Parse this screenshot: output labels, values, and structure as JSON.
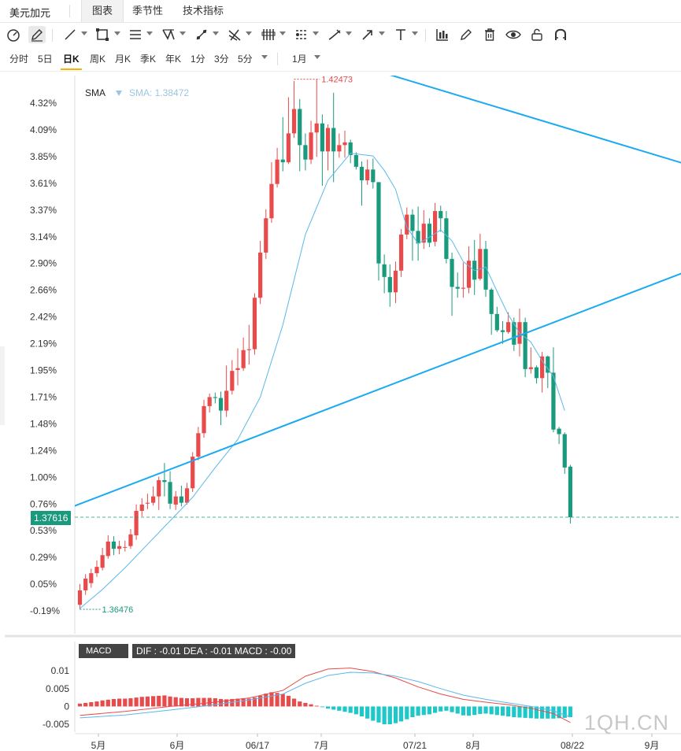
{
  "header": {
    "app_title": "美元加元",
    "tabs": [
      {
        "label": "图表",
        "active": true
      },
      {
        "label": "季节性",
        "active": false
      },
      {
        "label": "技术指标",
        "active": false
      }
    ]
  },
  "toolbar": {
    "icons": [
      "gauge-icon",
      "pen-icon",
      "line-icon",
      "rectangle-icon",
      "parallel-lines-icon",
      "pattern-icon",
      "line-segment-icon",
      "cross-lines-icon",
      "candle-bars-icon",
      "fib-levels-icon",
      "brush-icon",
      "arrow-icon",
      "text-icon",
      "indicator-chart-icon",
      "edit-pencil-icon",
      "trash-icon",
      "eye-icon",
      "lock-icon",
      "magnet-icon"
    ]
  },
  "periods": [
    "分时",
    "5日",
    "日K",
    "周K",
    "月K",
    "季K",
    "年K",
    "1分",
    "3分",
    "5分"
  ],
  "active_period": "日K",
  "range_select": "1月",
  "colors": {
    "up": "#e84b4b",
    "down": "#1a9a7c",
    "sma": "#5bb8ea",
    "trendline": "#1aaaf0",
    "dif": "#e84b4b",
    "dea": "#5bb8ea",
    "macd_pos": "#e84b4b",
    "macd_neg": "#1ec8c8"
  },
  "main_chart": {
    "indicator_label": "SMA",
    "indicator_value": "SMA: 1.38472",
    "high_label": "1.42473",
    "low_label": "1.36476",
    "current_price_label": "1.37616",
    "watermark": "1QH.CN"
  },
  "macd": {
    "label": "MACD",
    "info": "DIF : -0.01   DEA : -0.01   MACD : -0.00"
  },
  "chart_data": {
    "type": "candlestick",
    "y_axis_ticks": [
      "4.32%",
      "4.09%",
      "3.85%",
      "3.61%",
      "3.37%",
      "3.14%",
      "2.90%",
      "2.66%",
      "2.42%",
      "2.19%",
      "1.95%",
      "1.71%",
      "1.48%",
      "1.24%",
      "1.00%",
      "0.76%",
      "0.53%",
      "0.29%",
      "0.05%",
      "-0.19%"
    ],
    "ylim": [
      1.3633,
      1.4251
    ],
    "x_axis_ticks": [
      "5月",
      "6月",
      "06/17",
      "7月",
      "07/21",
      "8月",
      "08/22",
      "9月"
    ],
    "candles": [
      [
        1.3665,
        1.3681,
        1.366,
        1.3688
      ],
      [
        1.3681,
        1.3694,
        1.3676,
        1.3699
      ],
      [
        1.3689,
        1.37,
        1.3684,
        1.3705
      ],
      [
        1.37,
        1.3707,
        1.3696,
        1.3714
      ],
      [
        1.3706,
        1.372,
        1.3703,
        1.3728
      ],
      [
        1.3719,
        1.3735,
        1.3716,
        1.3742
      ],
      [
        1.3735,
        1.3727,
        1.372,
        1.3741
      ],
      [
        1.3727,
        1.373,
        1.3721,
        1.3736
      ],
      [
        1.3729,
        1.3729,
        1.3724,
        1.3736
      ],
      [
        1.373,
        1.3743,
        1.3727,
        1.3749
      ],
      [
        1.3742,
        1.3769,
        1.3737,
        1.3776
      ],
      [
        1.3769,
        1.3776,
        1.3763,
        1.3783
      ],
      [
        1.3777,
        1.3778,
        1.3771,
        1.3788
      ],
      [
        1.3778,
        1.3785,
        1.3775,
        1.3796
      ],
      [
        1.3785,
        1.3803,
        1.377,
        1.3807
      ],
      [
        1.3803,
        1.3801,
        1.3785,
        1.3822
      ],
      [
        1.3801,
        1.3777,
        1.3771,
        1.3813
      ],
      [
        1.3776,
        1.3785,
        1.377,
        1.3791
      ],
      [
        1.3785,
        1.3778,
        1.3774,
        1.3797
      ],
      [
        1.3778,
        1.3794,
        1.3776,
        1.38
      ],
      [
        1.3794,
        1.3829,
        1.379,
        1.3834
      ],
      [
        1.3829,
        1.3855,
        1.3825,
        1.3862
      ],
      [
        1.3855,
        1.3885,
        1.385,
        1.3892
      ],
      [
        1.3885,
        1.3895,
        1.3878,
        1.3899
      ],
      [
        1.3895,
        1.3894,
        1.3888,
        1.39
      ],
      [
        1.3894,
        1.388,
        1.3864,
        1.3901
      ],
      [
        1.388,
        1.3902,
        1.3873,
        1.393
      ],
      [
        1.3902,
        1.3924,
        1.3898,
        1.3936
      ],
      [
        1.3925,
        1.3927,
        1.3908,
        1.3949
      ],
      [
        1.3927,
        1.3947,
        1.3924,
        1.3961
      ],
      [
        1.3947,
        1.3948,
        1.3931,
        1.3975
      ],
      [
        1.3948,
        1.4005,
        1.3942,
        1.401
      ],
      [
        1.4005,
        1.4055,
        1.3998,
        1.4068
      ],
      [
        1.4055,
        1.4093,
        1.4048,
        1.4103
      ],
      [
        1.4093,
        1.4131,
        1.4088,
        1.4155
      ],
      [
        1.4131,
        1.4158,
        1.4127,
        1.4171
      ],
      [
        1.4158,
        1.4155,
        1.4145,
        1.4205
      ],
      [
        1.4155,
        1.4187,
        1.4153,
        1.4227
      ],
      [
        1.4187,
        1.4214,
        1.4182,
        1.4245
      ],
      [
        1.4214,
        1.4174,
        1.4145,
        1.4225
      ],
      [
        1.4174,
        1.4158,
        1.4146,
        1.4187
      ],
      [
        1.4158,
        1.4188,
        1.4153,
        1.4201
      ],
      [
        1.4188,
        1.4198,
        1.4161,
        1.4247
      ],
      [
        1.4198,
        1.4167,
        1.4129,
        1.4208
      ],
      [
        1.4167,
        1.4193,
        1.4146,
        1.4197
      ],
      [
        1.4193,
        1.4167,
        1.4133,
        1.4232
      ],
      [
        1.4167,
        1.4174,
        1.416,
        1.4187
      ],
      [
        1.4174,
        1.4177,
        1.416,
        1.419
      ],
      [
        1.4177,
        1.4163,
        1.4154,
        1.418
      ],
      [
        1.4163,
        1.415,
        1.4147,
        1.4166
      ],
      [
        1.415,
        1.4135,
        1.4107,
        1.4156
      ],
      [
        1.4135,
        1.4147,
        1.413,
        1.4158
      ],
      [
        1.4147,
        1.4133,
        1.4126,
        1.4159
      ],
      [
        1.4133,
        1.4043,
        1.4024,
        1.4133
      ],
      [
        1.4042,
        1.4028,
        1.401,
        1.4053
      ],
      [
        1.4028,
        1.4011,
        1.3995,
        1.4042
      ],
      [
        1.4011,
        1.4035,
        1.3999,
        1.4045
      ],
      [
        1.4035,
        1.4075,
        1.4028,
        1.4081
      ],
      [
        1.4075,
        1.4097,
        1.407,
        1.4105
      ],
      [
        1.4097,
        1.4079,
        1.4046,
        1.4103
      ],
      [
        1.4079,
        1.4065,
        1.4046,
        1.4106
      ],
      [
        1.4066,
        1.4087,
        1.4059,
        1.4102
      ],
      [
        1.4087,
        1.4066,
        1.4061,
        1.4093
      ],
      [
        1.4067,
        1.4101,
        1.4062,
        1.411
      ],
      [
        1.4101,
        1.4093,
        1.4078,
        1.4107
      ],
      [
        1.4093,
        1.4048,
        1.4043,
        1.4101
      ],
      [
        1.4048,
        1.4017,
        1.3985,
        1.4055
      ],
      [
        1.4017,
        1.4015,
        1.4005,
        1.4033
      ],
      [
        1.4015,
        1.4016,
        1.4005,
        1.4044
      ],
      [
        1.4016,
        1.4046,
        1.401,
        1.4062
      ],
      [
        1.4046,
        1.4025,
        1.4008,
        1.4069
      ],
      [
        1.4026,
        1.4059,
        1.4024,
        1.4076
      ],
      [
        1.4059,
        1.4014,
        1.4006,
        1.4068
      ],
      [
        1.4014,
        1.3987,
        1.3964,
        1.4016
      ],
      [
        1.3987,
        1.3969,
        1.3967,
        1.3995
      ],
      [
        1.3969,
        1.3967,
        1.3954,
        1.3979
      ],
      [
        1.3967,
        1.3978,
        1.3965,
        1.3989
      ],
      [
        1.3978,
        1.3953,
        1.3946,
        1.3983
      ],
      [
        1.3954,
        1.3978,
        1.394,
        1.3993
      ],
      [
        1.3978,
        1.3926,
        1.3917,
        1.3983
      ],
      [
        1.3926,
        1.3928,
        1.3921,
        1.395
      ],
      [
        1.3928,
        1.3916,
        1.391,
        1.393
      ],
      [
        1.3916,
        1.394,
        1.39,
        1.3945
      ],
      [
        1.394,
        1.3922,
        1.3905,
        1.3941
      ],
      [
        1.3922,
        1.3859,
        1.3856,
        1.395
      ],
      [
        1.386,
        1.3854,
        1.3843,
        1.3862
      ],
      [
        1.3854,
        1.3817,
        1.381,
        1.3856
      ],
      [
        1.3818,
        1.3762,
        1.3755,
        1.382
      ]
    ],
    "sma": [
      [
        0,
        1.3661
      ],
      [
        4,
        1.3682
      ],
      [
        8,
        1.3706
      ],
      [
        12,
        1.3732
      ],
      [
        16,
        1.3758
      ],
      [
        20,
        1.3784
      ],
      [
        24,
        1.3817
      ],
      [
        28,
        1.3848
      ],
      [
        32,
        1.3895
      ],
      [
        36,
        1.3975
      ],
      [
        40,
        1.4075
      ],
      [
        44,
        1.4135
      ],
      [
        48,
        1.4165
      ],
      [
        52,
        1.4162
      ],
      [
        54,
        1.4146
      ],
      [
        56,
        1.4125
      ],
      [
        58,
        1.4083
      ],
      [
        60,
        1.4065
      ],
      [
        62,
        1.4072
      ],
      [
        64,
        1.408
      ],
      [
        66,
        1.4068
      ],
      [
        68,
        1.4045
      ],
      [
        70,
        1.4035
      ],
      [
        72,
        1.4039
      ],
      [
        74,
        1.4012
      ],
      [
        76,
        1.3986
      ],
      [
        78,
        1.3966
      ],
      [
        80,
        1.3956
      ],
      [
        82,
        1.3935
      ],
      [
        84,
        1.3918
      ],
      [
        86,
        1.388
      ]
    ],
    "trendlines": [
      {
        "from": [
          -7,
          1.376
        ],
        "to": [
          108,
          1.4035
        ]
      },
      {
        "from": [
          22,
          1.4314
        ],
        "to": [
          108,
          1.4152
        ]
      }
    ],
    "macd": {
      "ylim": [
        -0.0072,
        0.0138
      ],
      "y_axis_ticks": [
        "0.01",
        "0.005",
        "0",
        "-0.005"
      ],
      "hist": [
        0.0008,
        0.001,
        0.0012,
        0.0014,
        0.0017,
        0.0019,
        0.0021,
        0.0022,
        0.0022,
        0.0023,
        0.0025,
        0.0027,
        0.0028,
        0.0029,
        0.003,
        0.0031,
        0.0028,
        0.0026,
        0.0024,
        0.0023,
        0.0023,
        0.0024,
        0.0024,
        0.0024,
        0.0023,
        0.0021,
        0.002,
        0.0021,
        0.0022,
        0.0023,
        0.0022,
        0.0025,
        0.003,
        0.0036,
        0.004,
        0.0038,
        0.0035,
        0.003,
        0.0022,
        0.0014,
        0.001,
        0.0006,
        0.0002,
        -0.0002,
        -0.0006,
        -0.0009,
        -0.0012,
        -0.0015,
        -0.0018,
        -0.0022,
        -0.0028,
        -0.0034,
        -0.004,
        -0.0045,
        -0.005,
        -0.005,
        -0.0047,
        -0.0042,
        -0.0036,
        -0.003,
        -0.0026,
        -0.0024,
        -0.0022,
        -0.0018,
        -0.0014,
        -0.0012,
        -0.0016,
        -0.002,
        -0.0025,
        -0.0026,
        -0.0024,
        -0.0021,
        -0.002,
        -0.0022,
        -0.0024,
        -0.0026,
        -0.0028,
        -0.003,
        -0.0031,
        -0.0032,
        -0.0033,
        -0.0034,
        -0.0034,
        -0.0034,
        -0.0034,
        -0.0033,
        -0.0032,
        -0.003
      ],
      "dif": [
        [
          0,
          -0.0025
        ],
        [
          8,
          -0.0014
        ],
        [
          16,
          0.0
        ],
        [
          24,
          0.0012
        ],
        [
          30,
          0.0024
        ],
        [
          36,
          0.0045
        ],
        [
          40,
          0.0085
        ],
        [
          44,
          0.0105
        ],
        [
          48,
          0.0108
        ],
        [
          52,
          0.0098
        ],
        [
          56,
          0.008
        ],
        [
          60,
          0.0055
        ],
        [
          64,
          0.0035
        ],
        [
          68,
          0.002
        ],
        [
          72,
          0.0012
        ],
        [
          76,
          0.0005
        ],
        [
          80,
          -0.0005
        ],
        [
          84,
          -0.002
        ],
        [
          87,
          -0.0045
        ]
      ],
      "dea": [
        [
          0,
          -0.0032
        ],
        [
          8,
          -0.0024
        ],
        [
          16,
          -0.001
        ],
        [
          24,
          0.0005
        ],
        [
          30,
          0.0018
        ],
        [
          36,
          0.0035
        ],
        [
          40,
          0.0065
        ],
        [
          44,
          0.0087
        ],
        [
          48,
          0.0096
        ],
        [
          52,
          0.0094
        ],
        [
          56,
          0.0085
        ],
        [
          60,
          0.007
        ],
        [
          64,
          0.005
        ],
        [
          68,
          0.0032
        ],
        [
          72,
          0.002
        ],
        [
          76,
          0.001
        ],
        [
          80,
          0.0
        ],
        [
          84,
          -0.0012
        ],
        [
          87,
          -0.003
        ]
      ]
    }
  }
}
